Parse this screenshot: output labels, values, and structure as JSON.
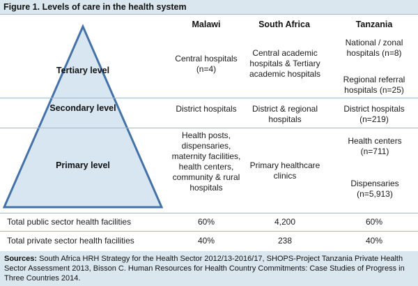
{
  "figure": {
    "title": "Figure 1. Levels of care in the health system"
  },
  "columns": [
    "Malawi",
    "South Africa",
    "Tanzania"
  ],
  "levels": [
    {
      "name": "Tertiary level",
      "malawi": "Central hospitals (n=4)",
      "south_africa": "Central academic hospitals & Tertiary academic hospitals",
      "tanzania_a": "National / zonal hospitals (n=8)",
      "tanzania_b": "Regional referral hospitals (n=25)"
    },
    {
      "name": "Secondary level",
      "malawi": "District hospitals",
      "south_africa": "District & regional hospitals",
      "tanzania_a": "District hospitals (n=219)"
    },
    {
      "name": "Primary level",
      "malawi": "Health posts, dispensaries, maternity facilities, health centers, community & rural hospitals",
      "south_africa": "Primary healthcare clinics",
      "tanzania_a": "Health centers (n=711)",
      "tanzania_b": "Dispensaries (n=5,913)"
    }
  ],
  "totals": [
    {
      "label": "Total public sector health facilities",
      "malawi": "60%",
      "south_africa": "4,200",
      "tanzania": "60%"
    },
    {
      "label": "Total private sector health facilities",
      "malawi": "40%",
      "south_africa": "238",
      "tanzania": "40%"
    }
  ],
  "sources": {
    "label": "Sources:",
    "text": "South Africa HRH Strategy for the Health Sector 2012/13-2016/17, SHOPS-Project Tanzania Private Health Sector Assessment 2013, Bisson C. Human Resources for Health Country Commitments: Case Studies of Progress in Three Countries 2014."
  },
  "colors": {
    "pyramid_fill": "#d8e6f1",
    "pyramid_stroke": "#4472a8",
    "title_bar": "#dbe7ef",
    "rule": "#9fb7c9"
  }
}
